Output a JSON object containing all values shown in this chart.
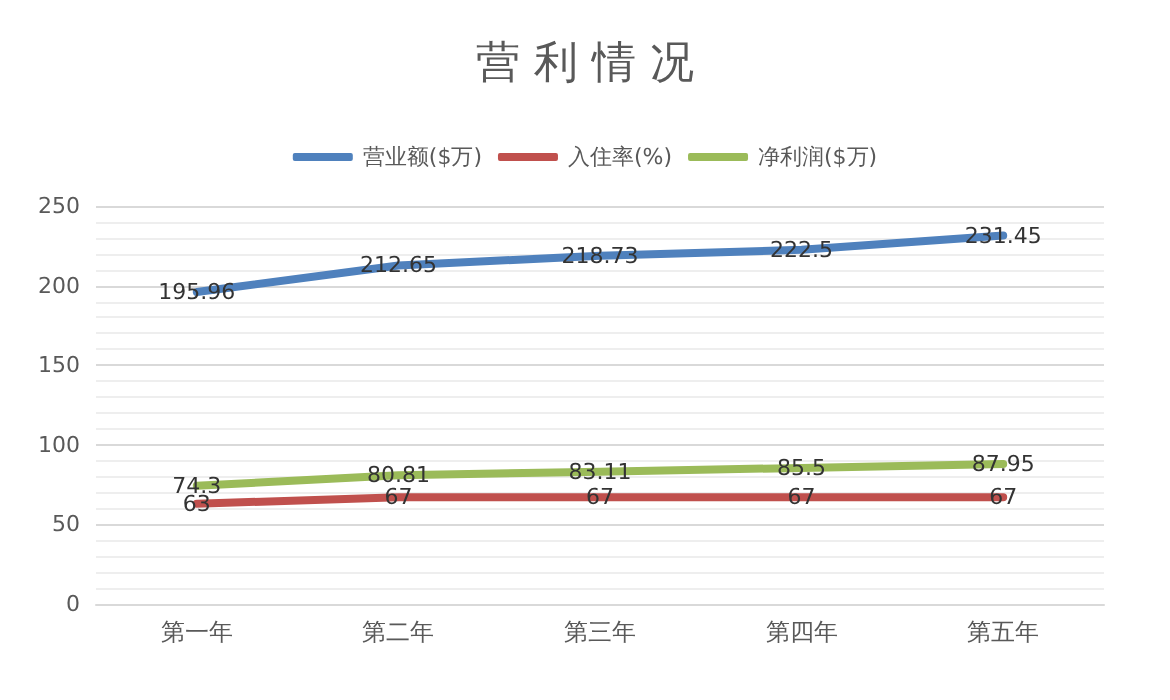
{
  "chart_data": {
    "type": "line",
    "title": "营 利 情 况",
    "categories": [
      "第一年",
      "第二年",
      "第三年",
      "第四年",
      "第五年"
    ],
    "series": [
      {
        "name": "营业额($万)",
        "color": "#4f81bd",
        "values": [
          195.96,
          212.65,
          218.73,
          222.5,
          231.45
        ]
      },
      {
        "name": "入住率(%)",
        "color": "#c0504d",
        "values": [
          63,
          67,
          67,
          67,
          67
        ]
      },
      {
        "name": "净利润($万)",
        "color": "#9bbb59",
        "values": [
          74.3,
          80.81,
          83.11,
          85.5,
          87.95
        ]
      }
    ],
    "ylim": [
      0,
      250
    ],
    "yticks": [
      0,
      50,
      100,
      150,
      200,
      250
    ],
    "grid": "y",
    "legend": "top",
    "marker": "none",
    "line_style": "solid",
    "data_labels": true
  }
}
